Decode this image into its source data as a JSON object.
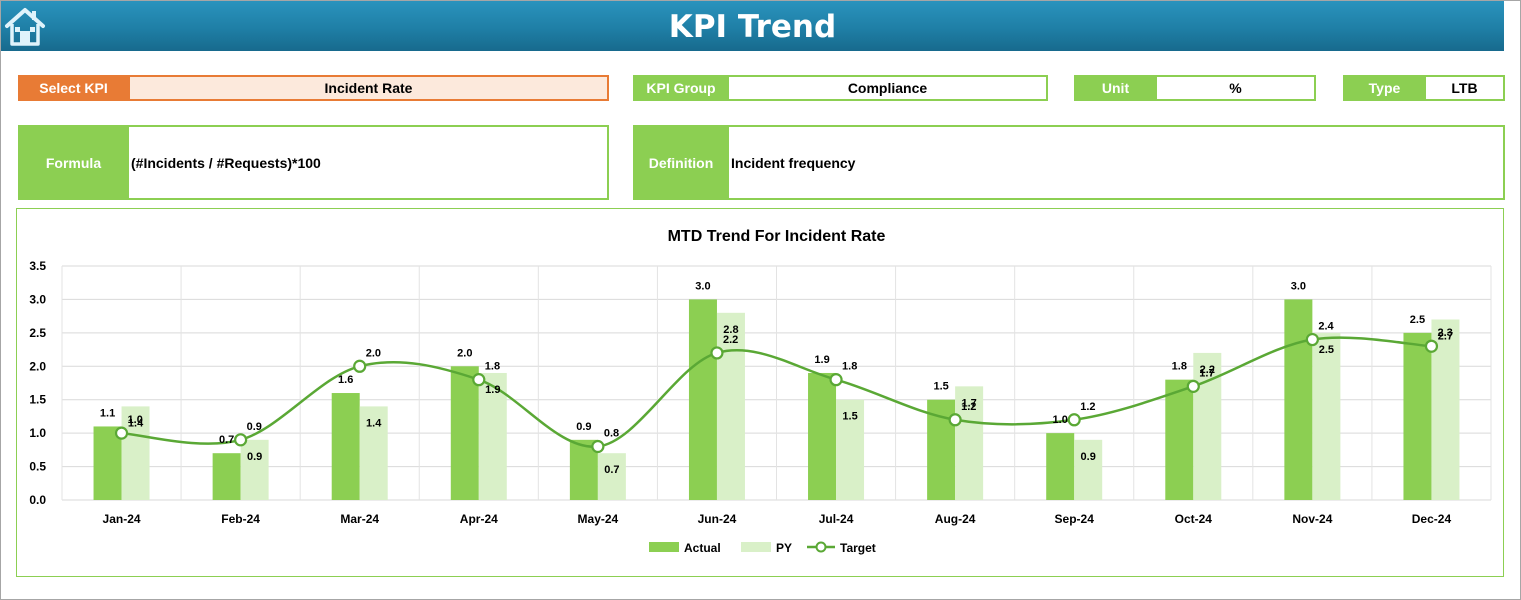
{
  "header": {
    "title": "KPI Trend",
    "home_icon": "home-icon"
  },
  "fields": {
    "select_kpi_label": "Select KPI",
    "select_kpi_value": "Incident Rate",
    "kpi_group_label": "KPI Group",
    "kpi_group_value": "Compliance",
    "unit_label": "Unit",
    "unit_value": "%",
    "type_label": "Type",
    "type_value": "LTB",
    "formula_label": "Formula",
    "formula_value": "(#Incidents / #Requests)*100",
    "definition_label": "Definition",
    "definition_value": "Incident frequency"
  },
  "colors": {
    "header": "#1f7fa6",
    "accent_green": "#8ccf52",
    "select_orange": "#e87b35",
    "pale_green": "#d9f0c8",
    "target_line": "#5aa835"
  },
  "chart_data": {
    "type": "bar",
    "title": "MTD Trend For Incident Rate",
    "categories": [
      "Jan-24",
      "Feb-24",
      "Mar-24",
      "Apr-24",
      "May-24",
      "Jun-24",
      "Jul-24",
      "Aug-24",
      "Sep-24",
      "Oct-24",
      "Nov-24",
      "Dec-24"
    ],
    "series": [
      {
        "name": "Actual",
        "kind": "bar",
        "color": "#8ccf52",
        "values": [
          1.1,
          0.7,
          1.6,
          2.0,
          0.9,
          3.0,
          1.9,
          1.5,
          1.0,
          1.8,
          3.0,
          2.5
        ]
      },
      {
        "name": "PY",
        "kind": "bar",
        "color": "#d9f0c8",
        "values": [
          1.4,
          0.9,
          1.4,
          1.9,
          0.7,
          2.8,
          1.5,
          1.7,
          0.9,
          2.2,
          2.5,
          2.7
        ]
      },
      {
        "name": "Target",
        "kind": "line",
        "color": "#5aa835",
        "values": [
          1.0,
          0.9,
          2.0,
          1.8,
          0.8,
          2.2,
          1.8,
          1.2,
          1.2,
          1.7,
          2.4,
          2.3
        ]
      }
    ],
    "ylim": [
      0,
      3.5
    ],
    "yticks": [
      "0.0",
      "0.5",
      "1.0",
      "1.5",
      "2.0",
      "2.5",
      "3.0",
      "3.5"
    ],
    "grid": true,
    "legend_position": "bottom"
  }
}
